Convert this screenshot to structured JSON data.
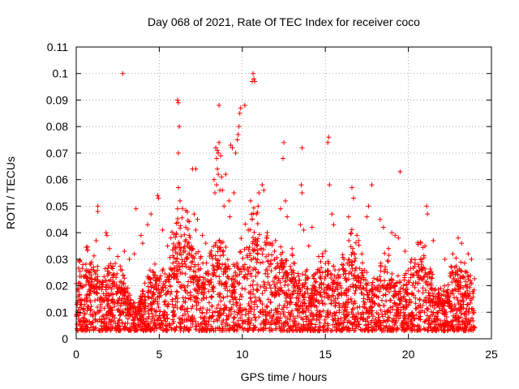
{
  "chart_data": {
    "type": "scatter",
    "title": "Day 068 of 2021, Rate Of TEC Index for receiver coco",
    "xlabel": "GPS time / hours",
    "ylabel": "ROTI / TECUs",
    "xlim": [
      0,
      25
    ],
    "ylim": [
      0,
      0.11
    ],
    "x_ticks": [
      "0",
      "5",
      "10",
      "15",
      "20",
      "25"
    ],
    "y_ticks": [
      "0",
      "0.01",
      "0.02",
      "0.03",
      "0.04",
      "0.05",
      "0.06",
      "0.07",
      "0.08",
      "0.09",
      "0.1",
      "0.11"
    ],
    "grid": true,
    "legend": "none",
    "marker": "+",
    "series_color": "#ff0000",
    "series": [
      {
        "points": [
          [
            2.8,
            0.1
          ],
          [
            6.1,
            0.09
          ],
          [
            6.15,
            0.089
          ],
          [
            6.2,
            0.08
          ],
          [
            6.15,
            0.07
          ],
          [
            8.6,
            0.088
          ],
          [
            9.9,
            0.087
          ],
          [
            9.85,
            0.085
          ],
          [
            10.15,
            0.088
          ],
          [
            9.8,
            0.08
          ],
          [
            9.75,
            0.077
          ],
          [
            10.65,
            0.1
          ],
          [
            10.7,
            0.098
          ],
          [
            10.75,
            0.097
          ],
          [
            10.6,
            0.097
          ],
          [
            8.4,
            0.072
          ],
          [
            8.5,
            0.071
          ],
          [
            8.55,
            0.07
          ],
          [
            8.6,
            0.074
          ],
          [
            8.45,
            0.068
          ],
          [
            8.7,
            0.069
          ],
          [
            9.3,
            0.073
          ],
          [
            9.4,
            0.072
          ],
          [
            9.7,
            0.075
          ],
          [
            9.6,
            0.07
          ],
          [
            12.5,
            0.074
          ],
          [
            12.45,
            0.068
          ],
          [
            13.6,
            0.072
          ],
          [
            15.2,
            0.076
          ],
          [
            15.15,
            0.074
          ],
          [
            19.5,
            0.063
          ],
          [
            15.25,
            0.058
          ],
          [
            13.55,
            0.058
          ],
          [
            13.6,
            0.055
          ],
          [
            7.0,
            0.064
          ],
          [
            7.2,
            0.064
          ],
          [
            6.15,
            0.057
          ],
          [
            6.25,
            0.052
          ],
          [
            6.1,
            0.049
          ],
          [
            11.2,
            0.058
          ],
          [
            11.3,
            0.056
          ],
          [
            11.0,
            0.055
          ],
          [
            10.95,
            0.05
          ],
          [
            10.85,
            0.047
          ],
          [
            16.6,
            0.057
          ],
          [
            16.7,
            0.053
          ],
          [
            17.8,
            0.058
          ],
          [
            17.6,
            0.05
          ],
          [
            17.5,
            0.046
          ],
          [
            21.1,
            0.05
          ],
          [
            21.15,
            0.047
          ],
          [
            1.3,
            0.05
          ],
          [
            1.3,
            0.048
          ],
          [
            1.8,
            0.04
          ],
          [
            1.85,
            0.039
          ],
          [
            4.9,
            0.054
          ],
          [
            4.95,
            0.053
          ],
          [
            3.6,
            0.049
          ],
          [
            4.3,
            0.043
          ],
          [
            4.5,
            0.047
          ],
          [
            7.1,
            0.047
          ],
          [
            7.3,
            0.045
          ],
          [
            7.2,
            0.041
          ],
          [
            8.8,
            0.056
          ],
          [
            8.9,
            0.05
          ],
          [
            8.3,
            0.06
          ],
          [
            8.35,
            0.055
          ],
          [
            9.5,
            0.055
          ],
          [
            9.2,
            0.052
          ],
          [
            9.25,
            0.046
          ],
          [
            10.5,
            0.052
          ],
          [
            10.6,
            0.045
          ],
          [
            12.6,
            0.052
          ],
          [
            12.3,
            0.049
          ],
          [
            12.7,
            0.046
          ],
          [
            13.5,
            0.043
          ],
          [
            13.7,
            0.041
          ],
          [
            14.2,
            0.042
          ],
          [
            15.4,
            0.047
          ],
          [
            15.5,
            0.043
          ],
          [
            16.4,
            0.046
          ],
          [
            16.9,
            0.039
          ],
          [
            18.3,
            0.045
          ],
          [
            18.5,
            0.042
          ],
          [
            19.0,
            0.04
          ],
          [
            19.2,
            0.039
          ],
          [
            19.4,
            0.038
          ],
          [
            21.0,
            0.035
          ],
          [
            21.5,
            0.037
          ],
          [
            23.0,
            0.038
          ],
          [
            23.2,
            0.036
          ],
          [
            23.6,
            0.032
          ],
          [
            0.2,
            0.029
          ],
          [
            0.4,
            0.028
          ],
          [
            1.2,
            0.037
          ],
          [
            2.0,
            0.034
          ],
          [
            2.5,
            0.031
          ],
          [
            3.2,
            0.03
          ],
          [
            3.5,
            0.032
          ],
          [
            5.5,
            0.035
          ],
          [
            5.7,
            0.038
          ],
          [
            11.8,
            0.036
          ],
          [
            12.0,
            0.037
          ],
          [
            14.6,
            0.031
          ],
          [
            15.0,
            0.033
          ],
          [
            16.0,
            0.028
          ],
          [
            17.2,
            0.032
          ],
          [
            17.0,
            0.037
          ],
          [
            18.8,
            0.034
          ],
          [
            19.8,
            0.033
          ],
          [
            20.2,
            0.03
          ],
          [
            20.6,
            0.028
          ],
          [
            22.2,
            0.03
          ],
          [
            22.6,
            0.027
          ],
          [
            23.8,
            0.03
          ],
          [
            13.0,
            0.034
          ],
          [
            14.0,
            0.035
          ],
          [
            7.6,
            0.039
          ],
          [
            7.8,
            0.036
          ],
          [
            6.6,
            0.042
          ],
          [
            6.8,
            0.039
          ],
          [
            5.2,
            0.041
          ],
          [
            4.0,
            0.036
          ],
          [
            2.9,
            0.033
          ],
          [
            3.9,
            0.039
          ],
          [
            11.5,
            0.04
          ],
          [
            9.0,
            0.062
          ],
          [
            8.5,
            0.064
          ],
          [
            8.55,
            0.062
          ],
          [
            8.45,
            0.058
          ],
          [
            8.65,
            0.056
          ],
          [
            8.75,
            0.061
          ]
        ]
      }
    ],
    "dense_band": {
      "x_range": [
        0,
        24
      ],
      "y_floor": 0.003,
      "typical_upper": [
        0.012,
        0.03
      ]
    }
  }
}
